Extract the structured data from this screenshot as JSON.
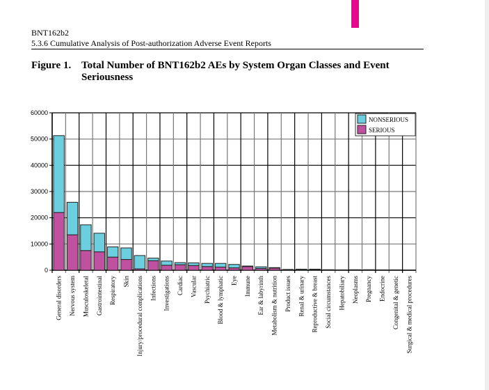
{
  "header": {
    "product": "BNT162b2",
    "section": "5.3.6 Cumulative Analysis of Post-authorization Adverse Event Reports"
  },
  "figure": {
    "number": "Figure 1.",
    "title": "Total Number of BNT162b2 AEs by System Organ Classes and Event Seriousness"
  },
  "chart_data": {
    "type": "bar",
    "stacked": true,
    "title": "Total Number of BNT162b2 AEs by System Organ Classes and Event Seriousness",
    "xlabel": "",
    "ylabel": "",
    "ylim": [
      0,
      60000
    ],
    "yticks": [
      "0",
      "10000",
      "20000",
      "30000",
      "40000",
      "50000",
      "60000"
    ],
    "grid": true,
    "legend_position": "top-right",
    "categories": [
      "General disorders",
      "Nervous system",
      "Musculoskeletal",
      "Gastrointestinal",
      "Respiratory",
      "Skin",
      "Injury/procedural complications",
      "Infections",
      "Investigations",
      "Cardiac",
      "Vascular",
      "Psychiatric",
      "Blood & lymphatic",
      "Eye",
      "Immune",
      "Ear & labyrinth",
      "Metabolism & nutrition",
      "Product issues",
      "Renal & urinary",
      "Reproductive & breast",
      "Social circumstances",
      "Hepatobiliary",
      "Neoplasms",
      "Pregnancy",
      "Endocrine",
      "Congenital & genetic",
      "Surgical & medical procedures"
    ],
    "series": [
      {
        "name": "SERIOUS",
        "color": "#c050a0",
        "values": [
          22000,
          13500,
          7500,
          7000,
          5000,
          4100,
          500,
          3600,
          1900,
          2100,
          1800,
          1400,
          1200,
          900,
          1400,
          700,
          800,
          100,
          100,
          200,
          50,
          100,
          200,
          200,
          50,
          50,
          0
        ]
      },
      {
        "name": "NONSERIOUS",
        "color": "#6ccfe0",
        "values": [
          29300,
          12400,
          9800,
          7100,
          3900,
          4400,
          5100,
          1000,
          1600,
          800,
          1000,
          1200,
          1400,
          1300,
          200,
          600,
          200,
          200,
          300,
          200,
          150,
          50,
          0,
          0,
          100,
          100,
          0
        ]
      }
    ]
  }
}
